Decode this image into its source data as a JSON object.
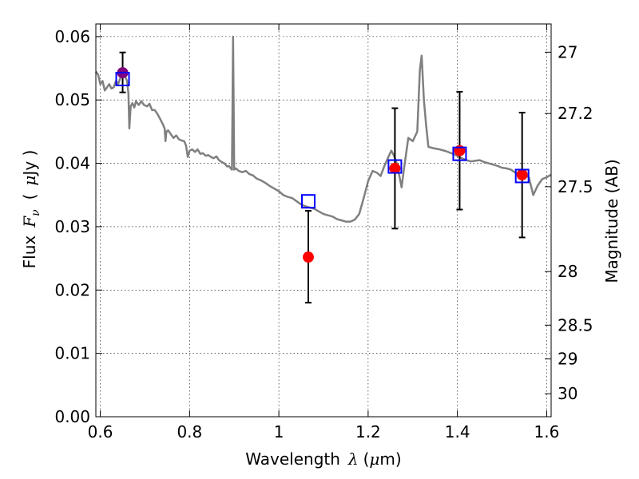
{
  "chart_data": {
    "type": "scatter",
    "xlabel": {
      "prefix": "Wavelength",
      "symbol": "λ",
      "unit_open": "(",
      "unit_mu": "μ",
      "unit_rest": "m)"
    },
    "ylabel": {
      "prefix": "Flux",
      "symbol": "F",
      "subscript": "ν",
      "unit_open": "(",
      "unit_mu": "μ",
      "unit_rest": "Jy )"
    },
    "y2label": "Magnitude (AB)",
    "xlim": [
      0.59,
      1.61
    ],
    "ylim": [
      0.0,
      0.062
    ],
    "xticks": [
      0.6,
      0.8,
      1.0,
      1.2,
      1.4,
      1.6
    ],
    "xtick_labels": [
      "0.6",
      "0.8",
      "1",
      "1.2",
      "1.4",
      "1.6"
    ],
    "yticks": [
      0.0,
      0.01,
      0.02,
      0.03,
      0.04,
      0.05,
      0.06
    ],
    "ytick_labels": [
      "0.00",
      "0.01",
      "0.02",
      "0.03",
      "0.04",
      "0.05",
      "0.06"
    ],
    "y2ticks": [
      {
        "mag": 27,
        "label": "27"
      },
      {
        "mag": 27.2,
        "label": "27.2"
      },
      {
        "mag": 27.5,
        "label": "27.5"
      },
      {
        "mag": 28,
        "label": "28"
      },
      {
        "mag": 28.5,
        "label": "28.5"
      },
      {
        "mag": 29,
        "label": "29"
      },
      {
        "mag": 30,
        "label": "30"
      }
    ],
    "grid": true,
    "colors": {
      "sed": "#808080",
      "observed": "#ff0000",
      "model": "#0000ff",
      "errorbar": "#000000",
      "overlap": "#800080"
    },
    "series": [
      {
        "type": "line",
        "points": [
          [
            0.59,
            0.0545
          ],
          [
            0.595,
            0.054
          ],
          [
            0.6,
            0.0525
          ],
          [
            0.605,
            0.053
          ],
          [
            0.61,
            0.0515
          ],
          [
            0.615,
            0.052
          ],
          [
            0.62,
            0.0525
          ],
          [
            0.625,
            0.0518
          ],
          [
            0.63,
            0.052
          ],
          [
            0.635,
            0.053
          ],
          [
            0.64,
            0.0525
          ],
          [
            0.645,
            0.0535
          ],
          [
            0.65,
            0.054
          ],
          [
            0.655,
            0.0538
          ],
          [
            0.66,
            0.053
          ],
          [
            0.663,
            0.051
          ],
          [
            0.665,
            0.0455
          ],
          [
            0.668,
            0.049
          ],
          [
            0.672,
            0.0495
          ],
          [
            0.676,
            0.0488
          ],
          [
            0.68,
            0.0498
          ],
          [
            0.686,
            0.0492
          ],
          [
            0.692,
            0.0498
          ],
          [
            0.698,
            0.0492
          ],
          [
            0.705,
            0.049
          ],
          [
            0.71,
            0.0494
          ],
          [
            0.716,
            0.0484
          ],
          [
            0.722,
            0.0484
          ],
          [
            0.728,
            0.0478
          ],
          [
            0.734,
            0.047
          ],
          [
            0.74,
            0.0462
          ],
          [
            0.744,
            0.0455
          ],
          [
            0.746,
            0.0435
          ],
          [
            0.748,
            0.045
          ],
          [
            0.752,
            0.0452
          ],
          [
            0.758,
            0.0446
          ],
          [
            0.764,
            0.044
          ],
          [
            0.77,
            0.0444
          ],
          [
            0.776,
            0.0438
          ],
          [
            0.782,
            0.0436
          ],
          [
            0.788,
            0.0435
          ],
          [
            0.792,
            0.0428
          ],
          [
            0.796,
            0.041
          ],
          [
            0.8,
            0.042
          ],
          [
            0.806,
            0.0422
          ],
          [
            0.812,
            0.0418
          ],
          [
            0.818,
            0.0422
          ],
          [
            0.824,
            0.0415
          ],
          [
            0.83,
            0.0416
          ],
          [
            0.836,
            0.0412
          ],
          [
            0.842,
            0.0413
          ],
          [
            0.848,
            0.041
          ],
          [
            0.854,
            0.0408
          ],
          [
            0.86,
            0.0411
          ],
          [
            0.866,
            0.0405
          ],
          [
            0.872,
            0.0402
          ],
          [
            0.878,
            0.04
          ],
          [
            0.884,
            0.0395
          ],
          [
            0.888,
            0.0396
          ],
          [
            0.892,
            0.0392
          ],
          [
            0.895,
            0.039
          ],
          [
            0.8975,
            0.06
          ],
          [
            0.9,
            0.039
          ],
          [
            0.904,
            0.0392
          ],
          [
            0.91,
            0.0388
          ],
          [
            0.918,
            0.0386
          ],
          [
            0.926,
            0.0388
          ],
          [
            0.934,
            0.0383
          ],
          [
            0.942,
            0.0381
          ],
          [
            0.95,
            0.0376
          ],
          [
            0.96,
            0.0373
          ],
          [
            0.97,
            0.0369
          ],
          [
            0.98,
            0.0364
          ],
          [
            0.99,
            0.036
          ],
          [
            1.0,
            0.0356
          ],
          [
            1.01,
            0.035
          ],
          [
            1.02,
            0.0347
          ],
          [
            1.03,
            0.0345
          ],
          [
            1.04,
            0.034
          ],
          [
            1.05,
            0.0335
          ],
          [
            1.06,
            0.0332
          ],
          [
            1.07,
            0.033
          ],
          [
            1.08,
            0.0328
          ],
          [
            1.09,
            0.0324
          ],
          [
            1.1,
            0.032
          ],
          [
            1.11,
            0.0318
          ],
          [
            1.12,
            0.0316
          ],
          [
            1.13,
            0.0312
          ],
          [
            1.14,
            0.031
          ],
          [
            1.15,
            0.0308
          ],
          [
            1.16,
            0.0308
          ],
          [
            1.17,
            0.0311
          ],
          [
            1.18,
            0.032
          ],
          [
            1.19,
            0.0345
          ],
          [
            1.2,
            0.0372
          ],
          [
            1.21,
            0.0388
          ],
          [
            1.22,
            0.0385
          ],
          [
            1.228,
            0.038
          ],
          [
            1.236,
            0.0395
          ],
          [
            1.244,
            0.0408
          ],
          [
            1.252,
            0.042
          ],
          [
            1.258,
            0.0412
          ],
          [
            1.264,
            0.04
          ],
          [
            1.27,
            0.038
          ],
          [
            1.275,
            0.0362
          ],
          [
            1.28,
            0.039
          ],
          [
            1.285,
            0.0415
          ],
          [
            1.29,
            0.044
          ],
          [
            1.3,
            0.0435
          ],
          [
            1.31,
            0.045
          ],
          [
            1.316,
            0.0548
          ],
          [
            1.32,
            0.057
          ],
          [
            1.325,
            0.05
          ],
          [
            1.33,
            0.046
          ],
          [
            1.335,
            0.0426
          ],
          [
            1.345,
            0.0424
          ],
          [
            1.36,
            0.0422
          ],
          [
            1.375,
            0.0419
          ],
          [
            1.39,
            0.0415
          ],
          [
            1.4,
            0.0412
          ],
          [
            1.41,
            0.0408
          ],
          [
            1.42,
            0.0405
          ],
          [
            1.43,
            0.0403
          ],
          [
            1.44,
            0.0404
          ],
          [
            1.45,
            0.0405
          ],
          [
            1.46,
            0.0402
          ],
          [
            1.47,
            0.04
          ],
          [
            1.48,
            0.0398
          ],
          [
            1.49,
            0.0396
          ],
          [
            1.5,
            0.0393
          ],
          [
            1.51,
            0.0392
          ],
          [
            1.52,
            0.039
          ],
          [
            1.53,
            0.0385
          ],
          [
            1.54,
            0.0384
          ],
          [
            1.55,
            0.0383
          ],
          [
            1.56,
            0.0378
          ],
          [
            1.57,
            0.035
          ],
          [
            1.58,
            0.0365
          ],
          [
            1.59,
            0.0375
          ],
          [
            1.6,
            0.0378
          ],
          [
            1.61,
            0.0382
          ]
        ]
      },
      {
        "type": "scatter",
        "marker": "circle",
        "points": [
          {
            "x": 0.65,
            "y": 0.0543,
            "err_low": 0.0512,
            "err_high": 0.0575
          },
          {
            "x": 1.066,
            "y": 0.0252,
            "err_low": 0.018,
            "err_high": 0.0325
          },
          {
            "x": 1.26,
            "y": 0.0392,
            "err_low": 0.0297,
            "err_high": 0.0487
          },
          {
            "x": 1.405,
            "y": 0.042,
            "err_low": 0.0327,
            "err_high": 0.0513
          },
          {
            "x": 1.545,
            "y": 0.0382,
            "err_low": 0.0283,
            "err_high": 0.048
          }
        ]
      },
      {
        "type": "scatter",
        "marker": "square",
        "points": [
          {
            "x": 0.65,
            "y": 0.0533
          },
          {
            "x": 1.066,
            "y": 0.034
          },
          {
            "x": 1.26,
            "y": 0.0395
          },
          {
            "x": 1.405,
            "y": 0.0415
          },
          {
            "x": 1.545,
            "y": 0.038
          }
        ]
      }
    ]
  }
}
